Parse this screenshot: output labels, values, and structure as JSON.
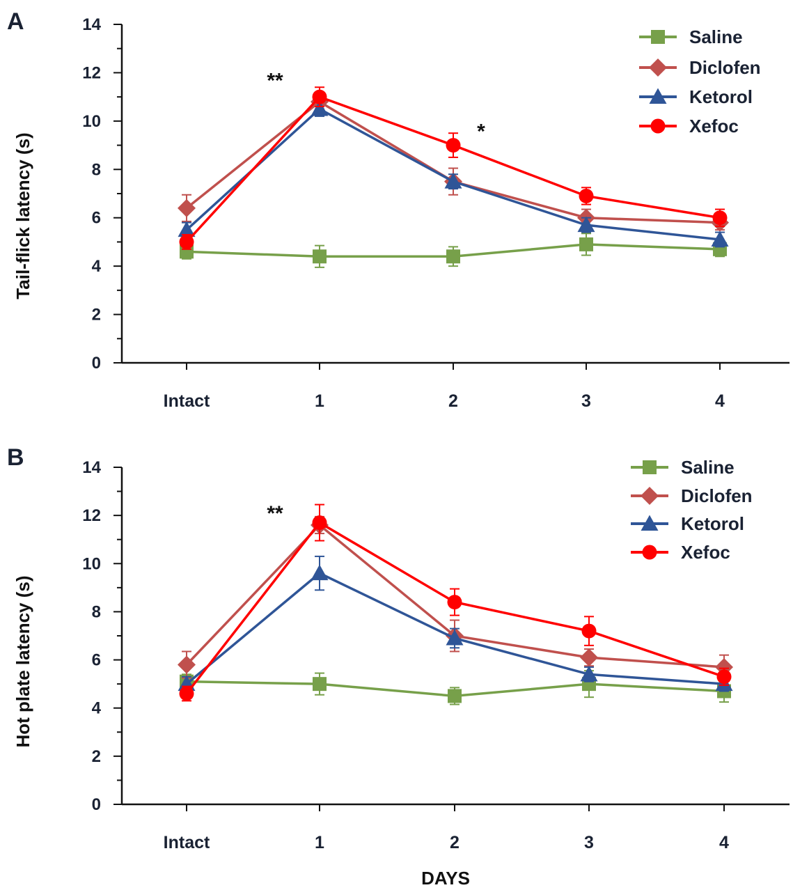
{
  "figure": {
    "xlabel": "DAYS"
  },
  "chart_data": [
    {
      "panel": "A",
      "type": "line",
      "categories": [
        "Intact",
        "1",
        "2",
        "3",
        "4"
      ],
      "ylabel": "Tail-flick latency (s)",
      "xlabel": "",
      "ylim": [
        0,
        14
      ],
      "yticks": [
        0,
        2,
        4,
        6,
        8,
        10,
        12,
        14
      ],
      "grid": false,
      "legend": "top-right",
      "annotations": [
        {
          "text": "**",
          "category": "1",
          "y": 11.8
        },
        {
          "text": "*",
          "category": "2",
          "y": 9.7
        }
      ],
      "series": [
        {
          "name": "Saline",
          "color": "#77a04a",
          "marker": "square",
          "values": [
            4.6,
            4.4,
            4.4,
            4.9,
            4.7
          ],
          "errors": [
            0.3,
            0.45,
            0.4,
            0.45,
            0.3
          ]
        },
        {
          "name": "Diclofen",
          "color": "#c0504d",
          "marker": "diamond",
          "values": [
            6.4,
            10.8,
            7.5,
            6.0,
            5.8
          ],
          "errors": [
            0.55,
            0.3,
            0.55,
            0.35,
            0.3
          ]
        },
        {
          "name": "Ketorol",
          "color": "#2f5597",
          "marker": "triangle",
          "values": [
            5.5,
            10.5,
            7.5,
            5.7,
            5.1
          ],
          "errors": [
            0.3,
            0.3,
            0.3,
            0.3,
            0.3
          ]
        },
        {
          "name": "Xefoc",
          "color": "#ff0000",
          "marker": "circle",
          "values": [
            5.0,
            11.0,
            9.0,
            6.9,
            6.0
          ],
          "errors": [
            0.3,
            0.4,
            0.5,
            0.35,
            0.35
          ]
        }
      ]
    },
    {
      "panel": "B",
      "type": "line",
      "categories": [
        "Intact",
        "1",
        "2",
        "3",
        "4"
      ],
      "ylabel": "Hot plate latency (s)",
      "xlabel": "DAYS",
      "ylim": [
        0,
        14
      ],
      "yticks": [
        0,
        2,
        4,
        6,
        8,
        10,
        12,
        14
      ],
      "grid": false,
      "legend": "top-right",
      "annotations": [
        {
          "text": "**",
          "category": "1",
          "y": 12.2
        }
      ],
      "series": [
        {
          "name": "Saline",
          "color": "#77a04a",
          "marker": "square",
          "values": [
            5.1,
            5.0,
            4.5,
            5.0,
            4.7
          ],
          "errors": [
            0.3,
            0.45,
            0.35,
            0.55,
            0.45
          ]
        },
        {
          "name": "Diclofen",
          "color": "#c0504d",
          "marker": "diamond",
          "values": [
            5.8,
            11.6,
            7.0,
            6.1,
            5.7
          ],
          "errors": [
            0.55,
            0.35,
            0.65,
            0.35,
            0.5
          ]
        },
        {
          "name": "Ketorol",
          "color": "#2f5597",
          "marker": "triangle",
          "values": [
            5.0,
            9.6,
            6.9,
            5.4,
            5.0
          ],
          "errors": [
            0.3,
            0.7,
            0.4,
            0.3,
            0.3
          ]
        },
        {
          "name": "Xefoc",
          "color": "#ff0000",
          "marker": "circle",
          "values": [
            4.6,
            11.7,
            8.4,
            7.2,
            5.3
          ],
          "errors": [
            0.3,
            0.75,
            0.55,
            0.6,
            0.35
          ]
        }
      ]
    }
  ]
}
